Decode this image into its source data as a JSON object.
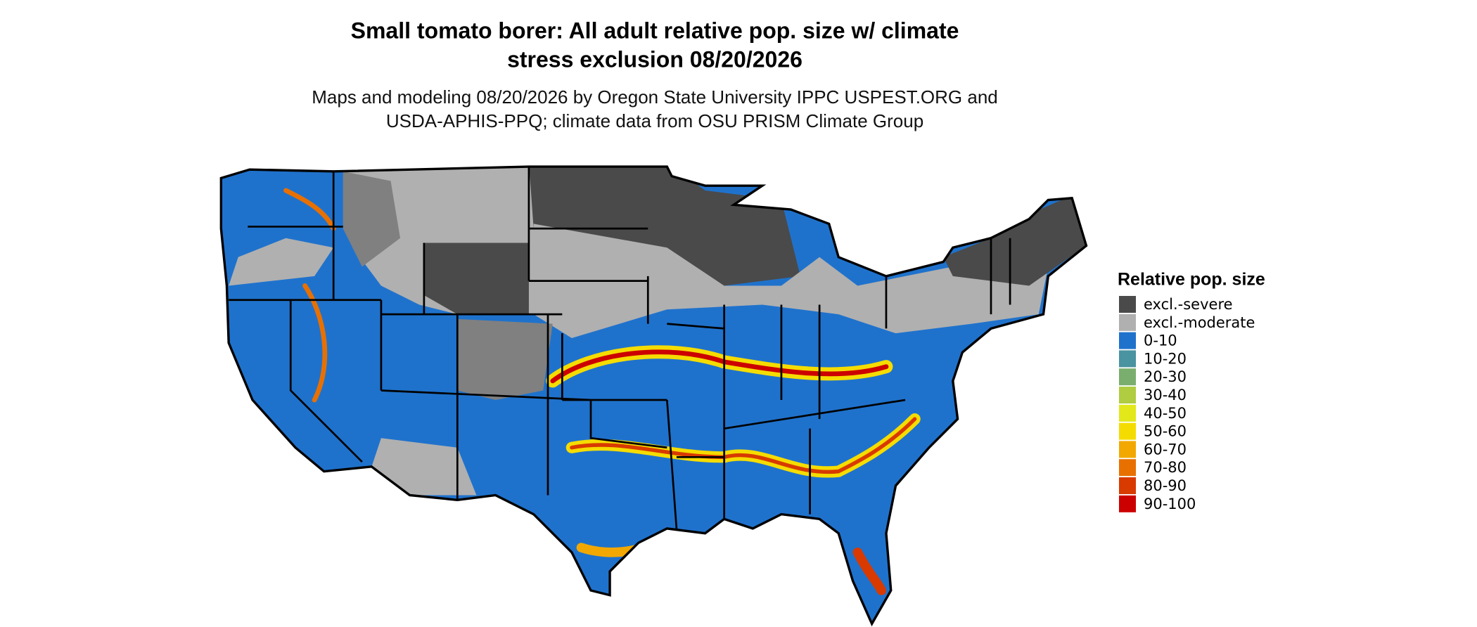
{
  "header": {
    "title_lines": [
      "Small tomato borer: All adult relative pop. size w/ climate",
      "stress exclusion 08/20/2026"
    ],
    "subtitle_lines": [
      "Maps and modeling 08/20/2026 by Oregon State University IPPC USPEST.ORG and",
      "USDA-APHIS-PPQ; climate data from OSU PRISM Climate Group"
    ]
  },
  "legend": {
    "title": "Relative pop. size",
    "items": [
      {
        "label": "excl.-severe",
        "color": "#4a4a4a"
      },
      {
        "label": "excl.-moderate",
        "color": "#b0b0b0"
      },
      {
        "label": "0-10",
        "color": "#1f72cc"
      },
      {
        "label": "10-20",
        "color": "#4a93a0"
      },
      {
        "label": "20-30",
        "color": "#7aae6e"
      },
      {
        "label": "30-40",
        "color": "#b0cc40"
      },
      {
        "label": "40-50",
        "color": "#e2e81a"
      },
      {
        "label": "50-60",
        "color": "#f5dc00"
      },
      {
        "label": "60-70",
        "color": "#f2a800"
      },
      {
        "label": "70-80",
        "color": "#e87000"
      },
      {
        "label": "80-90",
        "color": "#d83a00"
      },
      {
        "label": "90-100",
        "color": "#cc0000"
      }
    ]
  }
}
